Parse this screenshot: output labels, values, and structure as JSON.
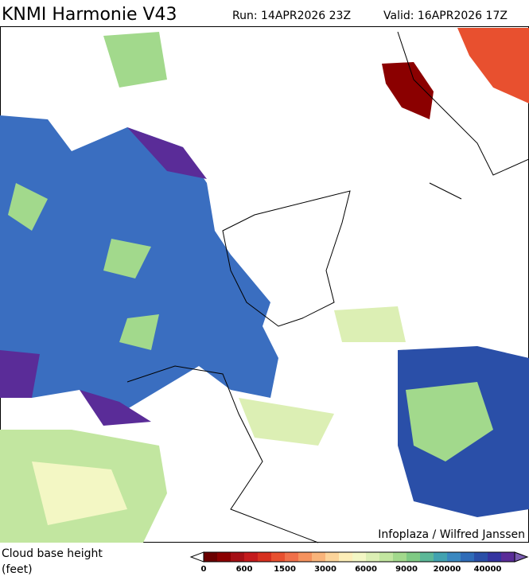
{
  "header": {
    "title": "KNMI Harmonie V43",
    "run": "Run: 14APR2026 23Z",
    "valid": "Valid: 16APR2026 17Z"
  },
  "credit": "Infoplaza / Wilfred Janssen",
  "legend": {
    "label": [
      "Cloud base height",
      "(feet)"
    ],
    "ticks": [
      0,
      600,
      1500,
      3000,
      6000,
      9000,
      20000,
      40000
    ],
    "colors": [
      "#6b0000",
      "#8b0000",
      "#a50f15",
      "#c41a1c",
      "#d7301f",
      "#e8502f",
      "#f0704a",
      "#f5925e",
      "#f9b47a",
      "#fcd49a",
      "#fdeeb8",
      "#f3f7c4",
      "#dcefb4",
      "#c2e6a0",
      "#a2d98c",
      "#7fca84",
      "#5cb898",
      "#42a2b0",
      "#3a88c0",
      "#2f6cb8",
      "#2a4fa8",
      "#3434a0",
      "#5a2c98"
    ],
    "low_color": "#ffffff",
    "high_color": "#7a5bb0"
  }
}
